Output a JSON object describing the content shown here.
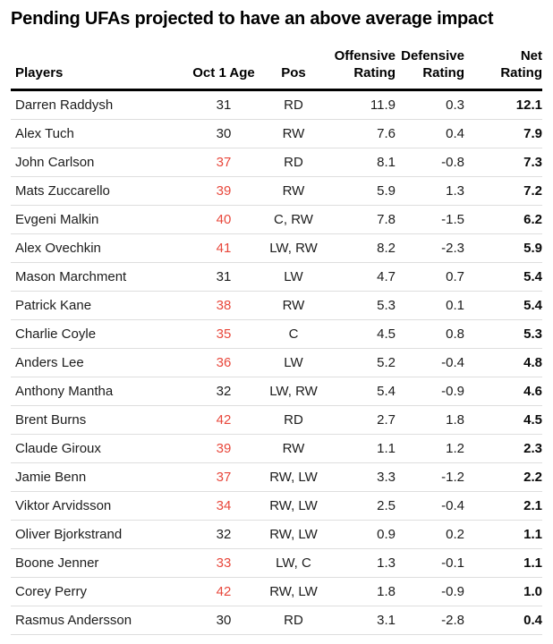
{
  "title": "Pending UFAs projected to have an above average impact",
  "colors": {
    "age_highlight": "#e8473b",
    "header_rule": "#000000",
    "row_separator": "#dedede",
    "text": "#1c1c1c"
  },
  "chart_data": {
    "type": "table",
    "title": "Pending UFAs projected to have an above average impact",
    "columns": [
      {
        "key": "player",
        "label": "Players",
        "align": "left"
      },
      {
        "key": "age",
        "label": "Oct 1 Age",
        "align": "center"
      },
      {
        "key": "pos",
        "label": "Pos",
        "align": "center"
      },
      {
        "key": "off",
        "label": "Offensive\nRating",
        "align": "right"
      },
      {
        "key": "def",
        "label": "Defensive\nRating",
        "align": "right"
      },
      {
        "key": "net",
        "label": "Net\nRating",
        "align": "right"
      }
    ],
    "rows": [
      {
        "player": "Darren Raddysh",
        "age": "31",
        "age_red": false,
        "pos": "RD",
        "off": "11.9",
        "def": "0.3",
        "net": "12.1"
      },
      {
        "player": "Alex Tuch",
        "age": "30",
        "age_red": false,
        "pos": "RW",
        "off": "7.6",
        "def": "0.4",
        "net": "7.9"
      },
      {
        "player": "John Carlson",
        "age": "37",
        "age_red": true,
        "pos": "RD",
        "off": "8.1",
        "def": "-0.8",
        "net": "7.3"
      },
      {
        "player": "Mats Zuccarello",
        "age": "39",
        "age_red": true,
        "pos": "RW",
        "off": "5.9",
        "def": "1.3",
        "net": "7.2"
      },
      {
        "player": "Evgeni Malkin",
        "age": "40",
        "age_red": true,
        "pos": "C, RW",
        "off": "7.8",
        "def": "-1.5",
        "net": "6.2"
      },
      {
        "player": "Alex Ovechkin",
        "age": "41",
        "age_red": true,
        "pos": "LW, RW",
        "off": "8.2",
        "def": "-2.3",
        "net": "5.9"
      },
      {
        "player": "Mason Marchment",
        "age": "31",
        "age_red": false,
        "pos": "LW",
        "off": "4.7",
        "def": "0.7",
        "net": "5.4"
      },
      {
        "player": "Patrick Kane",
        "age": "38",
        "age_red": true,
        "pos": "RW",
        "off": "5.3",
        "def": "0.1",
        "net": "5.4"
      },
      {
        "player": "Charlie Coyle",
        "age": "35",
        "age_red": true,
        "pos": "C",
        "off": "4.5",
        "def": "0.8",
        "net": "5.3"
      },
      {
        "player": "Anders Lee",
        "age": "36",
        "age_red": true,
        "pos": "LW",
        "off": "5.2",
        "def": "-0.4",
        "net": "4.8"
      },
      {
        "player": "Anthony Mantha",
        "age": "32",
        "age_red": false,
        "pos": "LW, RW",
        "off": "5.4",
        "def": "-0.9",
        "net": "4.6"
      },
      {
        "player": "Brent Burns",
        "age": "42",
        "age_red": true,
        "pos": "RD",
        "off": "2.7",
        "def": "1.8",
        "net": "4.5"
      },
      {
        "player": "Claude Giroux",
        "age": "39",
        "age_red": true,
        "pos": "RW",
        "off": "1.1",
        "def": "1.2",
        "net": "2.3"
      },
      {
        "player": "Jamie Benn",
        "age": "37",
        "age_red": true,
        "pos": "RW, LW",
        "off": "3.3",
        "def": "-1.2",
        "net": "2.2"
      },
      {
        "player": "Viktor Arvidsson",
        "age": "34",
        "age_red": true,
        "pos": "RW, LW",
        "off": "2.5",
        "def": "-0.4",
        "net": "2.1"
      },
      {
        "player": "Oliver Bjorkstrand",
        "age": "32",
        "age_red": false,
        "pos": "RW, LW",
        "off": "0.9",
        "def": "0.2",
        "net": "1.1"
      },
      {
        "player": "Boone Jenner",
        "age": "33",
        "age_red": true,
        "pos": "LW, C",
        "off": "1.3",
        "def": "-0.1",
        "net": "1.1"
      },
      {
        "player": "Corey Perry",
        "age": "42",
        "age_red": true,
        "pos": "RW, LW",
        "off": "1.8",
        "def": "-0.9",
        "net": "1.0"
      },
      {
        "player": "Rasmus Andersson",
        "age": "30",
        "age_red": false,
        "pos": "RD",
        "off": "3.1",
        "def": "-2.8",
        "net": "0.4"
      }
    ]
  }
}
